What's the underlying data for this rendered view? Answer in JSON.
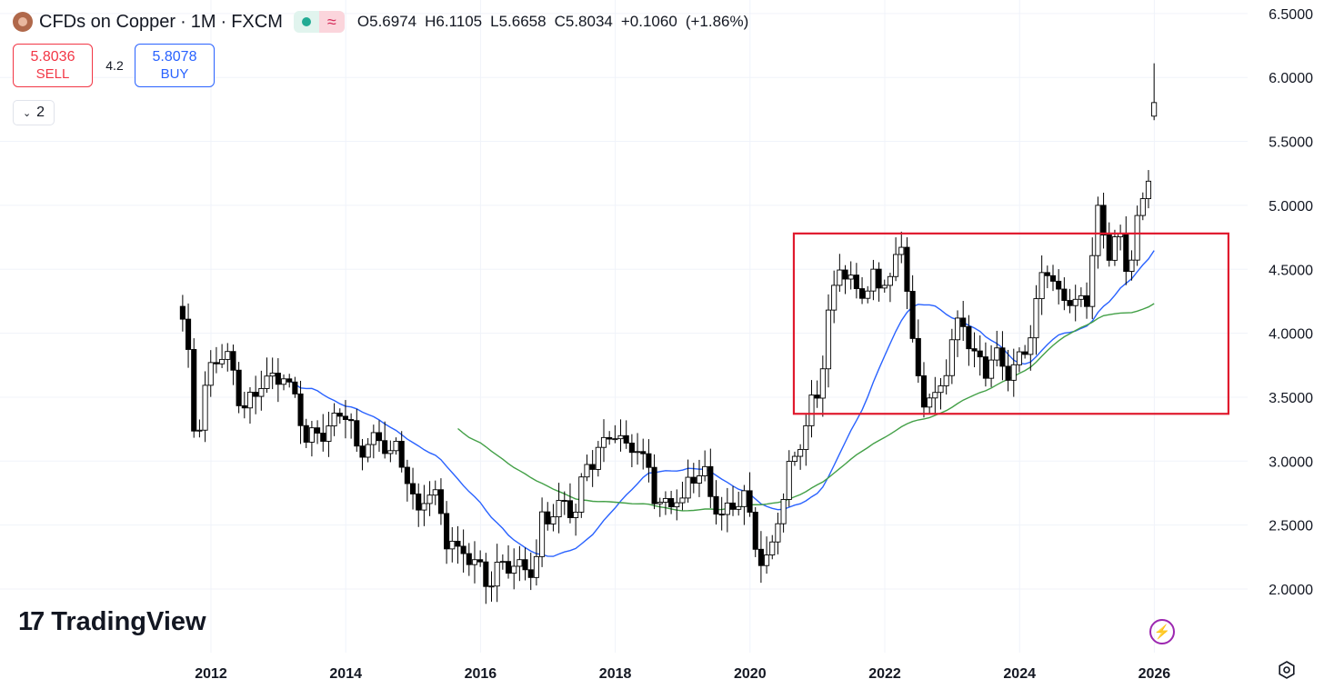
{
  "header": {
    "symbol": "CFDs on Copper",
    "interval": "1M",
    "exchange": "FXCM",
    "ohlc": {
      "o_label": "O",
      "o": "5.6974",
      "h_label": "H",
      "h": "6.1105",
      "l_label": "L",
      "l": "5.6658",
      "c_label": "C",
      "c": "5.8034",
      "change": "+0.1060",
      "change_pct": "(+1.86%)"
    }
  },
  "trade": {
    "sell_price": "5.8036",
    "sell_label": "SELL",
    "spread": "4.2",
    "buy_price": "5.8078",
    "buy_label": "BUY"
  },
  "indicators_count": "2",
  "logo_text": "TradingView",
  "icons": {
    "symbol": "copper-coin-icon",
    "status": "market-status-dot-icon",
    "wave": "wave-icon",
    "collapse": "chevron-down-icon",
    "bolt": "lightning-bolt-icon",
    "settings": "settings-gear-icon"
  },
  "colors": {
    "up_body": "#ffffff",
    "down_body": "#000000",
    "wick": "#000000",
    "ma_short": "#2962ff",
    "ma_long": "#43a047",
    "box": "#e0192d",
    "sell": "#f23645",
    "buy": "#2962ff"
  },
  "chart_data": {
    "type": "candlestick",
    "title": "CFDs on Copper · 1M · FXCM",
    "y_ticks": [
      "6.5000",
      "6.0000",
      "5.5000",
      "5.0000",
      "4.5000",
      "4.0000",
      "3.5000",
      "3.0000",
      "2.5000",
      "2.0000"
    ],
    "x_ticks": [
      "2012",
      "2014",
      "2016",
      "2018",
      "2020",
      "2022",
      "2024",
      "2026"
    ],
    "ylim": [
      1.55,
      6.5
    ],
    "xlim": [
      2010.15,
      2027.5
    ],
    "grid": true,
    "anchors": [
      [
        2011.6,
        4.15
      ],
      [
        2011.75,
        3.25
      ],
      [
        2011.85,
        3.35
      ],
      [
        2011.95,
        3.65
      ],
      [
        2012.1,
        3.85
      ],
      [
        2012.3,
        3.75
      ],
      [
        2012.45,
        3.4
      ],
      [
        2012.6,
        3.45
      ],
      [
        2012.75,
        3.65
      ],
      [
        2012.9,
        3.6
      ],
      [
        2013.05,
        3.72
      ],
      [
        2013.25,
        3.45
      ],
      [
        2013.4,
        3.2
      ],
      [
        2013.6,
        3.18
      ],
      [
        2013.75,
        3.25
      ],
      [
        2013.9,
        3.35
      ],
      [
        2014.05,
        3.35
      ],
      [
        2014.2,
        3.0
      ],
      [
        2014.35,
        3.2
      ],
      [
        2014.55,
        3.15
      ],
      [
        2014.75,
        3.05
      ],
      [
        2014.9,
        2.9
      ],
      [
        2015.05,
        2.55
      ],
      [
        2015.2,
        2.8
      ],
      [
        2015.35,
        2.7
      ],
      [
        2015.5,
        2.4
      ],
      [
        2015.65,
        2.3
      ],
      [
        2015.8,
        2.3
      ],
      [
        2015.95,
        2.15
      ],
      [
        2016.1,
        2.05
      ],
      [
        2016.3,
        2.2
      ],
      [
        2016.5,
        2.2
      ],
      [
        2016.65,
        2.15
      ],
      [
        2016.8,
        2.15
      ],
      [
        2016.9,
        2.5
      ],
      [
        2017.0,
        2.55
      ],
      [
        2017.2,
        2.65
      ],
      [
        2017.4,
        2.6
      ],
      [
        2017.55,
        2.9
      ],
      [
        2017.7,
        3.05
      ],
      [
        2017.85,
        3.15
      ],
      [
        2018.0,
        3.25
      ],
      [
        2018.15,
        3.1
      ],
      [
        2018.3,
        3.1
      ],
      [
        2018.45,
        3.0
      ],
      [
        2018.55,
        2.8
      ],
      [
        2018.7,
        2.65
      ],
      [
        2018.85,
        2.7
      ],
      [
        2019.0,
        2.7
      ],
      [
        2019.15,
        2.9
      ],
      [
        2019.3,
        2.95
      ],
      [
        2019.45,
        2.65
      ],
      [
        2019.6,
        2.55
      ],
      [
        2019.75,
        2.6
      ],
      [
        2019.9,
        2.75
      ],
      [
        2020.0,
        2.55
      ],
      [
        2020.1,
        2.35
      ],
      [
        2020.2,
        2.2
      ],
      [
        2020.3,
        2.3
      ],
      [
        2020.45,
        2.65
      ],
      [
        2020.6,
        2.95
      ],
      [
        2020.75,
        3.15
      ],
      [
        2020.9,
        3.4
      ],
      [
        2021.0,
        3.55
      ],
      [
        2021.1,
        3.85
      ],
      [
        2021.2,
        4.25
      ],
      [
        2021.35,
        4.6
      ],
      [
        2021.5,
        4.35
      ],
      [
        2021.65,
        4.3
      ],
      [
        2021.8,
        4.4
      ],
      [
        2021.95,
        4.4
      ],
      [
        2022.1,
        4.4
      ],
      [
        2022.25,
        4.75
      ],
      [
        2022.35,
        4.3
      ],
      [
        2022.45,
        3.7
      ],
      [
        2022.6,
        3.5
      ],
      [
        2022.75,
        3.45
      ],
      [
        2022.9,
        3.7
      ],
      [
        2023.05,
        4.1
      ],
      [
        2023.2,
        4.05
      ],
      [
        2023.35,
        3.75
      ],
      [
        2023.5,
        3.75
      ],
      [
        2023.65,
        3.8
      ],
      [
        2023.8,
        3.65
      ],
      [
        2023.9,
        3.7
      ],
      [
        2024.05,
        3.85
      ],
      [
        2024.2,
        4.05
      ],
      [
        2024.35,
        4.5
      ],
      [
        2024.45,
        4.55
      ],
      [
        2024.6,
        4.2
      ],
      [
        2024.75,
        4.3
      ],
      [
        2024.9,
        4.2
      ],
      [
        2025.0,
        4.25
      ],
      [
        2025.15,
        5.0
      ],
      [
        2025.3,
        4.6
      ],
      [
        2025.45,
        4.8
      ],
      [
        2025.6,
        4.4
      ],
      [
        2025.75,
        4.9
      ],
      [
        2025.9,
        5.1
      ],
      [
        2026.0,
        5.8
      ]
    ],
    "moving_averages": [
      {
        "period": 20,
        "color": "#2962ff"
      },
      {
        "period": 50,
        "color": "#43a047"
      }
    ],
    "annotation": {
      "type": "rectangle",
      "x_range": [
        2020.65,
        2027.1
      ],
      "y_range": [
        3.37,
        4.78
      ],
      "color": "#e0192d"
    }
  }
}
